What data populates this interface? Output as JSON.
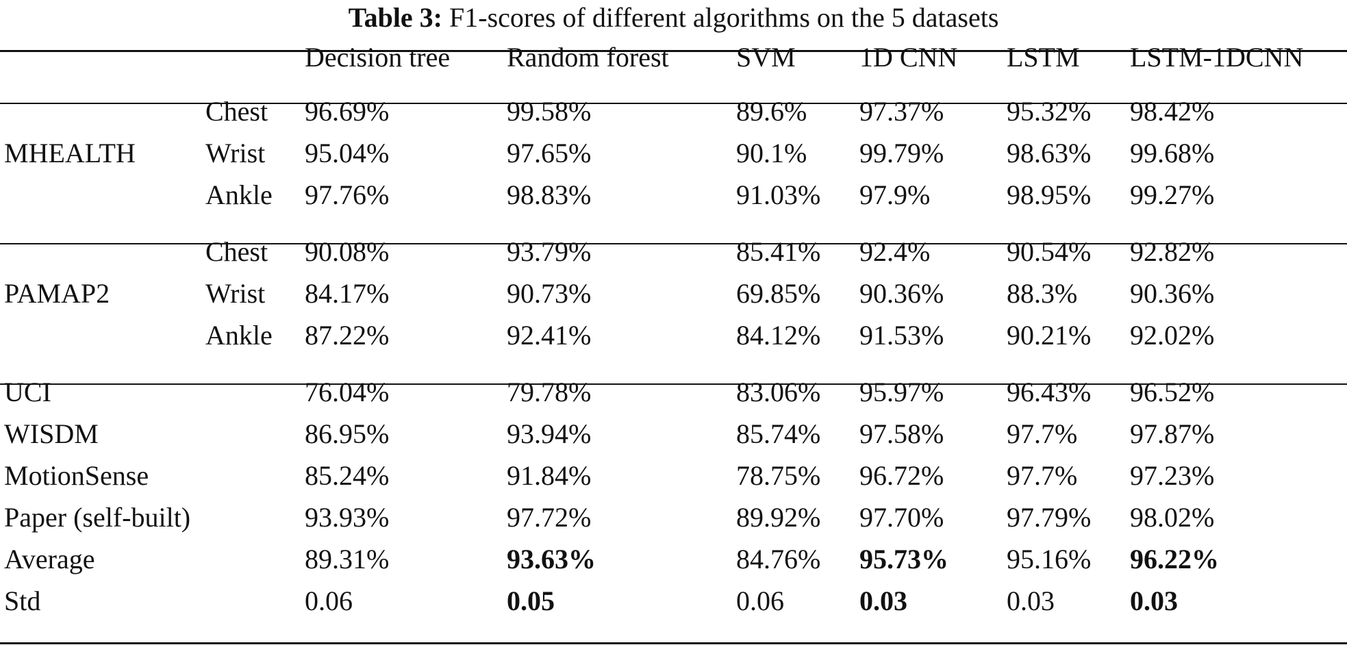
{
  "caption": {
    "label": "Table 3:",
    "text": "F1-scores of different algorithms on the 5 datasets"
  },
  "table": {
    "columns": [
      "Decision tree",
      "Random forest",
      "SVM",
      "1D CNN",
      "LSTM",
      "LSTM-1DCNN"
    ],
    "rows": [
      {
        "dataset": "",
        "position": "Chest",
        "values": [
          "96.69%",
          "99.58%",
          "89.6%",
          "97.37%",
          "95.32%",
          "98.42%"
        ],
        "bold": [
          false,
          false,
          false,
          false,
          false,
          false
        ]
      },
      {
        "dataset": "MHEALTH",
        "position": "Wrist",
        "values": [
          "95.04%",
          "97.65%",
          "90.1%",
          "99.79%",
          "98.63%",
          "99.68%"
        ],
        "bold": [
          false,
          false,
          false,
          false,
          false,
          false
        ]
      },
      {
        "dataset": "",
        "position": "Ankle",
        "values": [
          "97.76%",
          "98.83%",
          "91.03%",
          "97.9%",
          "98.95%",
          "99.27%"
        ],
        "bold": [
          false,
          false,
          false,
          false,
          false,
          false
        ]
      },
      {
        "dataset": "",
        "position": "Chest",
        "values": [
          "90.08%",
          "93.79%",
          "85.41%",
          "92.4%",
          "90.54%",
          "92.82%"
        ],
        "bold": [
          false,
          false,
          false,
          false,
          false,
          false
        ]
      },
      {
        "dataset": "PAMAP2",
        "position": "Wrist",
        "values": [
          "84.17%",
          "90.73%",
          "69.85%",
          "90.36%",
          "88.3%",
          "90.36%"
        ],
        "bold": [
          false,
          false,
          false,
          false,
          false,
          false
        ]
      },
      {
        "dataset": "",
        "position": "Ankle",
        "values": [
          "87.22%",
          "92.41%",
          "84.12%",
          "91.53%",
          "90.21%",
          "92.02%"
        ],
        "bold": [
          false,
          false,
          false,
          false,
          false,
          false
        ]
      },
      {
        "dataset": "UCI",
        "position": "",
        "values": [
          "76.04%",
          "79.78%",
          "83.06%",
          "95.97%",
          "96.43%",
          "96.52%"
        ],
        "bold": [
          false,
          false,
          false,
          false,
          false,
          false
        ]
      },
      {
        "dataset": "WISDM",
        "position": "",
        "values": [
          "86.95%",
          "93.94%",
          "85.74%",
          "97.58%",
          "97.7%",
          "97.87%"
        ],
        "bold": [
          false,
          false,
          false,
          false,
          false,
          false
        ]
      },
      {
        "dataset": "MotionSense",
        "position": "",
        "values": [
          "85.24%",
          "91.84%",
          "78.75%",
          "96.72%",
          "97.7%",
          "97.23%"
        ],
        "bold": [
          false,
          false,
          false,
          false,
          false,
          false
        ]
      },
      {
        "dataset": "Paper (self-built)",
        "position": "",
        "values": [
          "93.93%",
          "97.72%",
          "89.92%",
          "97.70%",
          "97.79%",
          "98.02%"
        ],
        "bold": [
          false,
          false,
          false,
          false,
          false,
          false
        ]
      },
      {
        "dataset": "Average",
        "position": "",
        "values": [
          "89.31%",
          "93.63%",
          "84.76%",
          "95.73%",
          "95.16%",
          "96.22%"
        ],
        "bold": [
          false,
          true,
          false,
          true,
          false,
          true
        ]
      },
      {
        "dataset": "Std",
        "position": "",
        "values": [
          "0.06",
          "0.05",
          "0.06",
          "0.03",
          "0.03",
          "0.03"
        ],
        "bold": [
          false,
          true,
          false,
          true,
          false,
          true
        ]
      }
    ]
  }
}
